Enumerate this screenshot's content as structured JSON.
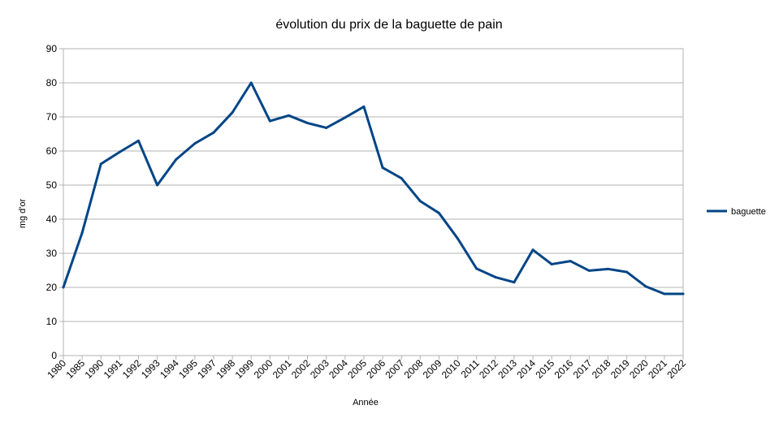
{
  "chart_data": {
    "type": "line",
    "title": "évolution du prix de la baguette de pain",
    "xlabel": "Année",
    "ylabel": "mg d'or",
    "ylim": [
      0,
      90
    ],
    "y_ticks": [
      0,
      10,
      20,
      30,
      40,
      50,
      60,
      70,
      80,
      90
    ],
    "grid": true,
    "legend_position": "right",
    "categories": [
      "1980",
      "1985",
      "1990",
      "1991",
      "1992",
      "1993",
      "1994",
      "1995",
      "1997",
      "1998",
      "1999",
      "2000",
      "2001",
      "2002",
      "2003",
      "2004",
      "2005",
      "2006",
      "2007",
      "2008",
      "2009",
      "2010",
      "2011",
      "2012",
      "2013",
      "2014",
      "2015",
      "2016",
      "2017",
      "2018",
      "2019",
      "2020",
      "2021",
      "2022"
    ],
    "series": [
      {
        "name": "baguette",
        "color": "#004586",
        "values": [
          20,
          36,
          56.2,
          59.7,
          63,
          50,
          57.5,
          62.2,
          65.4,
          71.3,
          80,
          68.8,
          70.4,
          68.2,
          66.8,
          69.8,
          73,
          55.1,
          52,
          45.3,
          41.8,
          34.3,
          25.5,
          23,
          21.5,
          31,
          26.8,
          27.7,
          24.9,
          25.4,
          24.5,
          20.3,
          18.1,
          18.1
        ]
      }
    ]
  }
}
